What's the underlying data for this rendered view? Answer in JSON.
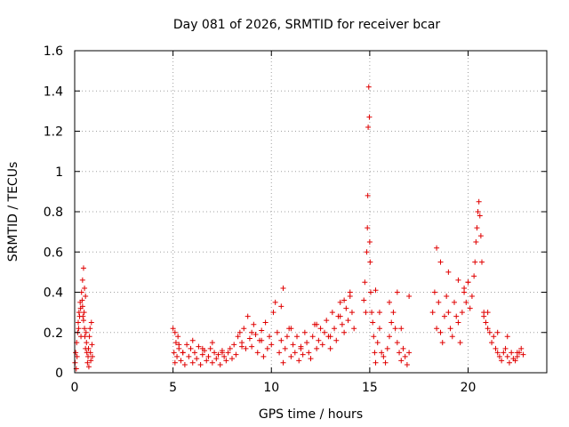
{
  "chart_data": {
    "type": "scatter",
    "title": "Day 081 of 2026, SRMTID for receiver bcar",
    "xlabel": "GPS time / hours",
    "ylabel": "SRMTID / TECUs",
    "xlim": [
      0,
      24
    ],
    "ylim": [
      0,
      1.6
    ],
    "xticks": [
      0,
      5,
      10,
      15,
      20
    ],
    "xtick_labels": [
      "0",
      "5",
      "10",
      "15",
      "20"
    ],
    "yticks": [
      0,
      0.2,
      0.4,
      0.6,
      0.8,
      1.0,
      1.2,
      1.4,
      1.6
    ],
    "ytick_labels": [
      "0",
      "0.2",
      "0.4",
      "0.6",
      "0.8",
      "1",
      "1.2",
      "1.4",
      "1.6"
    ],
    "grid": true,
    "marker": "+",
    "color": "#e00000",
    "series": [
      {
        "name": "SRMTID",
        "x": [
          0.02,
          0.05,
          0.08,
          0.1,
          0.12,
          0.15,
          0.18,
          0.2,
          0.22,
          0.25,
          0.28,
          0.3,
          0.32,
          0.35,
          0.38,
          0.4,
          0.42,
          0.45,
          0.48,
          0.5,
          0.52,
          0.55,
          0.58,
          0.6,
          0.62,
          0.65,
          0.68,
          0.7,
          0.72,
          0.75,
          0.78,
          0.8,
          0.82,
          0.85,
          0.88,
          0.9,
          5.0,
          5.05,
          5.1,
          5.15,
          5.2,
          5.25,
          5.3,
          5.4,
          5.5,
          5.6,
          5.7,
          5.8,
          5.9,
          6.0,
          6.1,
          6.2,
          6.3,
          6.4,
          6.5,
          6.6,
          6.7,
          6.8,
          6.9,
          7.0,
          7.1,
          7.2,
          7.3,
          7.4,
          7.5,
          7.6,
          7.7,
          7.8,
          7.9,
          8.0,
          8.1,
          8.2,
          8.3,
          8.4,
          8.5,
          8.6,
          8.7,
          8.8,
          8.9,
          9.0,
          9.1,
          9.2,
          9.3,
          9.4,
          9.5,
          9.6,
          9.7,
          9.8,
          9.9,
          10.0,
          10.1,
          10.2,
          10.3,
          10.4,
          10.5,
          10.6,
          10.7,
          10.8,
          10.9,
          11.0,
          11.1,
          11.2,
          11.3,
          11.4,
          11.5,
          11.6,
          11.7,
          11.8,
          11.9,
          12.0,
          12.1,
          12.2,
          12.3,
          12.4,
          12.5,
          12.6,
          12.7,
          12.8,
          12.9,
          13.0,
          13.1,
          13.2,
          13.3,
          13.4,
          13.5,
          13.6,
          13.7,
          13.8,
          13.9,
          14.0,
          14.1,
          14.2,
          14.7,
          14.75,
          14.8,
          14.85,
          14.88,
          14.9,
          14.92,
          14.95,
          14.98,
          15.0,
          15.02,
          15.05,
          15.1,
          15.15,
          15.2,
          15.25,
          15.3,
          15.4,
          15.5,
          15.6,
          15.7,
          15.8,
          15.9,
          16.0,
          16.1,
          16.2,
          16.3,
          16.4,
          16.5,
          16.6,
          16.7,
          16.8,
          16.9,
          17.0,
          18.2,
          18.3,
          18.4,
          18.5,
          18.6,
          18.7,
          18.8,
          18.9,
          19.0,
          19.1,
          19.2,
          19.3,
          19.4,
          19.5,
          19.6,
          19.7,
          19.8,
          19.9,
          20.0,
          20.1,
          20.2,
          20.3,
          20.35,
          20.4,
          20.45,
          20.5,
          20.55,
          20.6,
          20.65,
          20.7,
          20.8,
          20.9,
          21.0,
          21.1,
          21.2,
          21.3,
          21.4,
          21.5,
          21.6,
          21.7,
          21.8,
          21.9,
          22.0,
          22.1,
          22.2,
          22.3,
          22.4,
          22.5,
          22.6,
          22.7,
          22.8,
          0.4,
          0.45,
          0.5,
          0.55,
          5.1,
          5.3,
          5.5,
          6.0,
          6.5,
          7.0,
          7.5,
          8.5,
          9.0,
          9.5,
          10.5,
          10.6,
          11.0,
          11.5,
          12.3,
          13.0,
          13.5,
          13.7,
          14.0,
          15.3,
          15.5,
          16.0,
          16.4,
          16.6,
          17.0,
          18.4,
          18.6,
          19.0,
          19.5,
          19.8,
          20.0,
          20.8,
          21.0,
          21.5,
          22.0,
          22.5
        ],
        "y": [
          0.05,
          0.1,
          0.02,
          0.15,
          0.08,
          0.2,
          0.25,
          0.22,
          0.3,
          0.28,
          0.35,
          0.32,
          0.18,
          0.4,
          0.36,
          0.33,
          0.28,
          0.26,
          0.3,
          0.22,
          0.18,
          0.12,
          0.2,
          0.15,
          0.1,
          0.05,
          0.08,
          0.12,
          0.03,
          0.18,
          0.22,
          0.1,
          0.06,
          0.25,
          0.14,
          0.08,
          0.22,
          0.1,
          0.05,
          0.15,
          0.08,
          0.18,
          0.12,
          0.06,
          0.1,
          0.04,
          0.14,
          0.08,
          0.12,
          0.05,
          0.1,
          0.07,
          0.13,
          0.04,
          0.09,
          0.11,
          0.06,
          0.08,
          0.12,
          0.05,
          0.1,
          0.07,
          0.09,
          0.04,
          0.11,
          0.08,
          0.06,
          0.1,
          0.12,
          0.07,
          0.14,
          0.09,
          0.18,
          0.2,
          0.15,
          0.22,
          0.12,
          0.28,
          0.17,
          0.13,
          0.24,
          0.19,
          0.1,
          0.16,
          0.21,
          0.08,
          0.25,
          0.12,
          0.18,
          0.14,
          0.3,
          0.35,
          0.2,
          0.1,
          0.16,
          0.05,
          0.12,
          0.18,
          0.22,
          0.08,
          0.14,
          0.1,
          0.18,
          0.06,
          0.13,
          0.09,
          0.2,
          0.15,
          0.1,
          0.07,
          0.18,
          0.24,
          0.12,
          0.16,
          0.22,
          0.14,
          0.2,
          0.26,
          0.18,
          0.12,
          0.3,
          0.22,
          0.16,
          0.28,
          0.35,
          0.24,
          0.2,
          0.32,
          0.26,
          0.38,
          0.3,
          0.22,
          0.36,
          0.45,
          0.3,
          0.6,
          0.72,
          0.88,
          1.22,
          1.42,
          1.27,
          0.65,
          0.55,
          0.4,
          0.3,
          0.25,
          0.18,
          0.1,
          0.05,
          0.15,
          0.22,
          0.1,
          0.08,
          0.05,
          0.12,
          0.18,
          0.25,
          0.3,
          0.22,
          0.15,
          0.1,
          0.06,
          0.12,
          0.08,
          0.04,
          0.1,
          0.3,
          0.4,
          0.22,
          0.35,
          0.2,
          0.15,
          0.28,
          0.38,
          0.3,
          0.22,
          0.18,
          0.35,
          0.28,
          0.25,
          0.15,
          0.3,
          0.4,
          0.35,
          0.45,
          0.32,
          0.38,
          0.48,
          0.55,
          0.65,
          0.72,
          0.8,
          0.85,
          0.78,
          0.68,
          0.55,
          0.3,
          0.25,
          0.22,
          0.2,
          0.15,
          0.18,
          0.12,
          0.1,
          0.08,
          0.06,
          0.1,
          0.12,
          0.08,
          0.05,
          0.1,
          0.07,
          0.06,
          0.08,
          0.1,
          0.12,
          0.09,
          0.46,
          0.52,
          0.42,
          0.38,
          0.2,
          0.14,
          0.1,
          0.16,
          0.12,
          0.15,
          0.1,
          0.13,
          0.2,
          0.16,
          0.33,
          0.42,
          0.22,
          0.12,
          0.24,
          0.18,
          0.28,
          0.36,
          0.4,
          0.41,
          0.3,
          0.35,
          0.4,
          0.22,
          0.38,
          0.62,
          0.55,
          0.5,
          0.46,
          0.42,
          0.45,
          0.28,
          0.3,
          0.2,
          0.18,
          0.1
        ]
      }
    ]
  }
}
